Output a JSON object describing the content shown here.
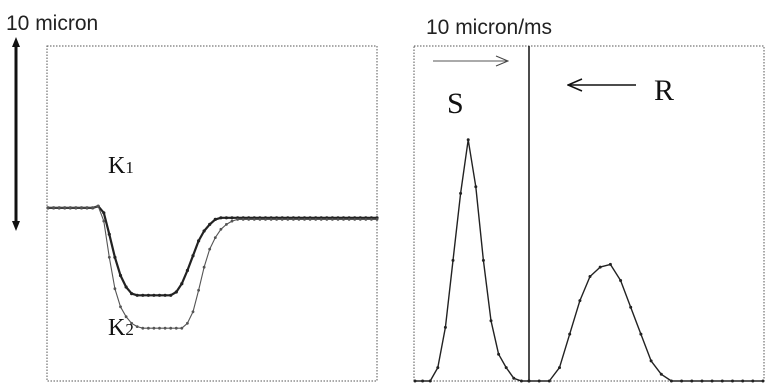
{
  "chart_data": [
    {
      "type": "line",
      "scale_label": "10 micron",
      "x": [
        0,
        1,
        2,
        3,
        4,
        5,
        6,
        7,
        8,
        9,
        10,
        11,
        12,
        13,
        14,
        15,
        16,
        17,
        18,
        19,
        20,
        21,
        22,
        23,
        24,
        25,
        26,
        27,
        28,
        29,
        30,
        31,
        32,
        33,
        34,
        35,
        36,
        37,
        38,
        39,
        40,
        41,
        42,
        43,
        44,
        45,
        46,
        47,
        48,
        49,
        50,
        51,
        52,
        53,
        54,
        55,
        56,
        57,
        58,
        59
      ],
      "ylim": [
        -10.5,
        10
      ],
      "series": [
        {
          "name": "K1",
          "sub": "1",
          "values": [
            0,
            0,
            0,
            0,
            0,
            0,
            0,
            0,
            0,
            0.1,
            -0.3,
            -1.6,
            -3.0,
            -4.1,
            -4.8,
            -5.2,
            -5.3,
            -5.3,
            -5.3,
            -5.3,
            -5.3,
            -5.3,
            -5.3,
            -5.1,
            -4.6,
            -3.8,
            -2.9,
            -2.0,
            -1.4,
            -1.0,
            -0.7,
            -0.6,
            -0.6,
            -0.6,
            -0.6,
            -0.6,
            -0.6,
            -0.6,
            -0.6,
            -0.6,
            -0.6,
            -0.6,
            -0.6,
            -0.6,
            -0.6,
            -0.6,
            -0.6,
            -0.6,
            -0.6,
            -0.6,
            -0.6,
            -0.6,
            -0.6,
            -0.6,
            -0.6,
            -0.6,
            -0.6,
            -0.6,
            -0.6,
            -0.6
          ]
        },
        {
          "name": "K2",
          "sub": "2",
          "values": [
            0,
            0,
            0,
            0,
            0,
            0,
            0,
            0,
            0,
            0.1,
            -0.8,
            -3.0,
            -4.9,
            -6.0,
            -6.6,
            -7.0,
            -7.2,
            -7.3,
            -7.3,
            -7.3,
            -7.3,
            -7.3,
            -7.3,
            -7.3,
            -7.3,
            -7.0,
            -6.3,
            -5.0,
            -3.6,
            -2.5,
            -1.8,
            -1.3,
            -1.0,
            -0.8,
            -0.7,
            -0.7,
            -0.7,
            -0.7,
            -0.7,
            -0.7,
            -0.7,
            -0.7,
            -0.7,
            -0.7,
            -0.7,
            -0.7,
            -0.7,
            -0.7,
            -0.7,
            -0.7,
            -0.7,
            -0.7,
            -0.7,
            -0.7,
            -0.7,
            -0.7,
            -0.7,
            -0.7,
            -0.7,
            -0.7
          ]
        }
      ]
    },
    {
      "type": "line",
      "scale_label": "10 micron/ms",
      "panels": [
        {
          "label": "S",
          "x": [
            0,
            1,
            2,
            3,
            4,
            5,
            6,
            7,
            8,
            9,
            10,
            11,
            12,
            13,
            14,
            15
          ],
          "values": [
            0,
            0,
            0,
            0.1,
            0.4,
            0.9,
            1.4,
            1.8,
            1.45,
            0.9,
            0.45,
            0.2,
            0.1,
            0.02,
            0,
            0
          ],
          "ylim": [
            0,
            2.5
          ]
        },
        {
          "label": "R",
          "x": [
            0,
            1,
            2,
            3,
            4,
            5,
            6,
            7,
            8,
            9,
            10,
            11,
            12,
            13,
            14,
            15,
            16,
            17,
            18,
            19,
            20,
            21,
            22,
            23
          ],
          "values": [
            0,
            0,
            0,
            0.1,
            0.35,
            0.6,
            0.78,
            0.85,
            0.87,
            0.75,
            0.55,
            0.35,
            0.15,
            0.05,
            0,
            0,
            0,
            0,
            0,
            0,
            0,
            0,
            0,
            0
          ],
          "ylim": [
            0,
            2.5
          ]
        }
      ]
    }
  ]
}
